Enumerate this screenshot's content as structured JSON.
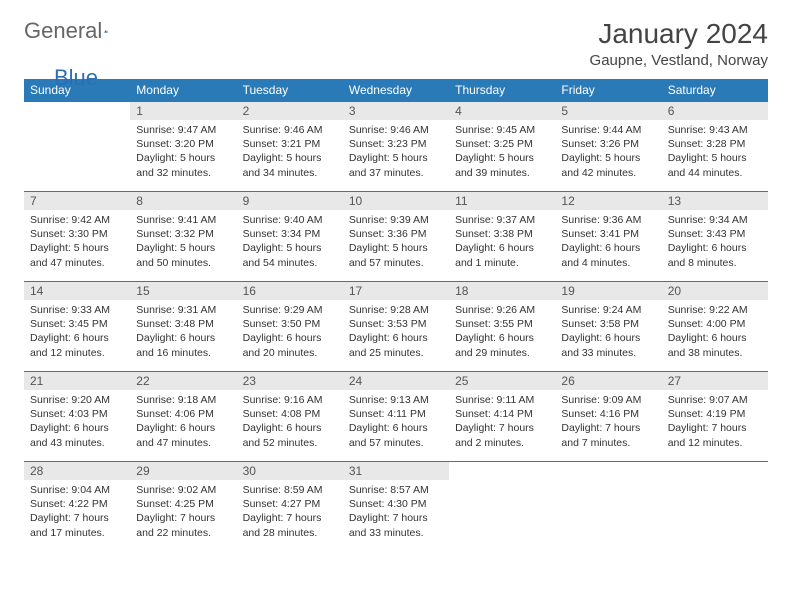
{
  "logo": {
    "text1": "General",
    "text2": "Blue"
  },
  "header": {
    "title": "January 2024",
    "location": "Gaupne, Vestland, Norway"
  },
  "theme": {
    "accent": "#2a7ab8",
    "dayHeaderBg": "#e8e8e8",
    "text": "#333333"
  },
  "days_of_week": [
    "Sunday",
    "Monday",
    "Tuesday",
    "Wednesday",
    "Thursday",
    "Friday",
    "Saturday"
  ],
  "grid": [
    [
      {
        "empty": true
      },
      {
        "n": "1",
        "sr": "Sunrise: 9:47 AM",
        "ss": "Sunset: 3:20 PM",
        "d1": "Daylight: 5 hours",
        "d2": "and 32 minutes."
      },
      {
        "n": "2",
        "sr": "Sunrise: 9:46 AM",
        "ss": "Sunset: 3:21 PM",
        "d1": "Daylight: 5 hours",
        "d2": "and 34 minutes."
      },
      {
        "n": "3",
        "sr": "Sunrise: 9:46 AM",
        "ss": "Sunset: 3:23 PM",
        "d1": "Daylight: 5 hours",
        "d2": "and 37 minutes."
      },
      {
        "n": "4",
        "sr": "Sunrise: 9:45 AM",
        "ss": "Sunset: 3:25 PM",
        "d1": "Daylight: 5 hours",
        "d2": "and 39 minutes."
      },
      {
        "n": "5",
        "sr": "Sunrise: 9:44 AM",
        "ss": "Sunset: 3:26 PM",
        "d1": "Daylight: 5 hours",
        "d2": "and 42 minutes."
      },
      {
        "n": "6",
        "sr": "Sunrise: 9:43 AM",
        "ss": "Sunset: 3:28 PM",
        "d1": "Daylight: 5 hours",
        "d2": "and 44 minutes."
      }
    ],
    [
      {
        "n": "7",
        "sr": "Sunrise: 9:42 AM",
        "ss": "Sunset: 3:30 PM",
        "d1": "Daylight: 5 hours",
        "d2": "and 47 minutes."
      },
      {
        "n": "8",
        "sr": "Sunrise: 9:41 AM",
        "ss": "Sunset: 3:32 PM",
        "d1": "Daylight: 5 hours",
        "d2": "and 50 minutes."
      },
      {
        "n": "9",
        "sr": "Sunrise: 9:40 AM",
        "ss": "Sunset: 3:34 PM",
        "d1": "Daylight: 5 hours",
        "d2": "and 54 minutes."
      },
      {
        "n": "10",
        "sr": "Sunrise: 9:39 AM",
        "ss": "Sunset: 3:36 PM",
        "d1": "Daylight: 5 hours",
        "d2": "and 57 minutes."
      },
      {
        "n": "11",
        "sr": "Sunrise: 9:37 AM",
        "ss": "Sunset: 3:38 PM",
        "d1": "Daylight: 6 hours",
        "d2": "and 1 minute."
      },
      {
        "n": "12",
        "sr": "Sunrise: 9:36 AM",
        "ss": "Sunset: 3:41 PM",
        "d1": "Daylight: 6 hours",
        "d2": "and 4 minutes."
      },
      {
        "n": "13",
        "sr": "Sunrise: 9:34 AM",
        "ss": "Sunset: 3:43 PM",
        "d1": "Daylight: 6 hours",
        "d2": "and 8 minutes."
      }
    ],
    [
      {
        "n": "14",
        "sr": "Sunrise: 9:33 AM",
        "ss": "Sunset: 3:45 PM",
        "d1": "Daylight: 6 hours",
        "d2": "and 12 minutes."
      },
      {
        "n": "15",
        "sr": "Sunrise: 9:31 AM",
        "ss": "Sunset: 3:48 PM",
        "d1": "Daylight: 6 hours",
        "d2": "and 16 minutes."
      },
      {
        "n": "16",
        "sr": "Sunrise: 9:29 AM",
        "ss": "Sunset: 3:50 PM",
        "d1": "Daylight: 6 hours",
        "d2": "and 20 minutes."
      },
      {
        "n": "17",
        "sr": "Sunrise: 9:28 AM",
        "ss": "Sunset: 3:53 PM",
        "d1": "Daylight: 6 hours",
        "d2": "and 25 minutes."
      },
      {
        "n": "18",
        "sr": "Sunrise: 9:26 AM",
        "ss": "Sunset: 3:55 PM",
        "d1": "Daylight: 6 hours",
        "d2": "and 29 minutes."
      },
      {
        "n": "19",
        "sr": "Sunrise: 9:24 AM",
        "ss": "Sunset: 3:58 PM",
        "d1": "Daylight: 6 hours",
        "d2": "and 33 minutes."
      },
      {
        "n": "20",
        "sr": "Sunrise: 9:22 AM",
        "ss": "Sunset: 4:00 PM",
        "d1": "Daylight: 6 hours",
        "d2": "and 38 minutes."
      }
    ],
    [
      {
        "n": "21",
        "sr": "Sunrise: 9:20 AM",
        "ss": "Sunset: 4:03 PM",
        "d1": "Daylight: 6 hours",
        "d2": "and 43 minutes."
      },
      {
        "n": "22",
        "sr": "Sunrise: 9:18 AM",
        "ss": "Sunset: 4:06 PM",
        "d1": "Daylight: 6 hours",
        "d2": "and 47 minutes."
      },
      {
        "n": "23",
        "sr": "Sunrise: 9:16 AM",
        "ss": "Sunset: 4:08 PM",
        "d1": "Daylight: 6 hours",
        "d2": "and 52 minutes."
      },
      {
        "n": "24",
        "sr": "Sunrise: 9:13 AM",
        "ss": "Sunset: 4:11 PM",
        "d1": "Daylight: 6 hours",
        "d2": "and 57 minutes."
      },
      {
        "n": "25",
        "sr": "Sunrise: 9:11 AM",
        "ss": "Sunset: 4:14 PM",
        "d1": "Daylight: 7 hours",
        "d2": "and 2 minutes."
      },
      {
        "n": "26",
        "sr": "Sunrise: 9:09 AM",
        "ss": "Sunset: 4:16 PM",
        "d1": "Daylight: 7 hours",
        "d2": "and 7 minutes."
      },
      {
        "n": "27",
        "sr": "Sunrise: 9:07 AM",
        "ss": "Sunset: 4:19 PM",
        "d1": "Daylight: 7 hours",
        "d2": "and 12 minutes."
      }
    ],
    [
      {
        "n": "28",
        "sr": "Sunrise: 9:04 AM",
        "ss": "Sunset: 4:22 PM",
        "d1": "Daylight: 7 hours",
        "d2": "and 17 minutes."
      },
      {
        "n": "29",
        "sr": "Sunrise: 9:02 AM",
        "ss": "Sunset: 4:25 PM",
        "d1": "Daylight: 7 hours",
        "d2": "and 22 minutes."
      },
      {
        "n": "30",
        "sr": "Sunrise: 8:59 AM",
        "ss": "Sunset: 4:27 PM",
        "d1": "Daylight: 7 hours",
        "d2": "and 28 minutes."
      },
      {
        "n": "31",
        "sr": "Sunrise: 8:57 AM",
        "ss": "Sunset: 4:30 PM",
        "d1": "Daylight: 7 hours",
        "d2": "and 33 minutes."
      },
      {
        "empty": true
      },
      {
        "empty": true
      },
      {
        "empty": true
      }
    ]
  ]
}
